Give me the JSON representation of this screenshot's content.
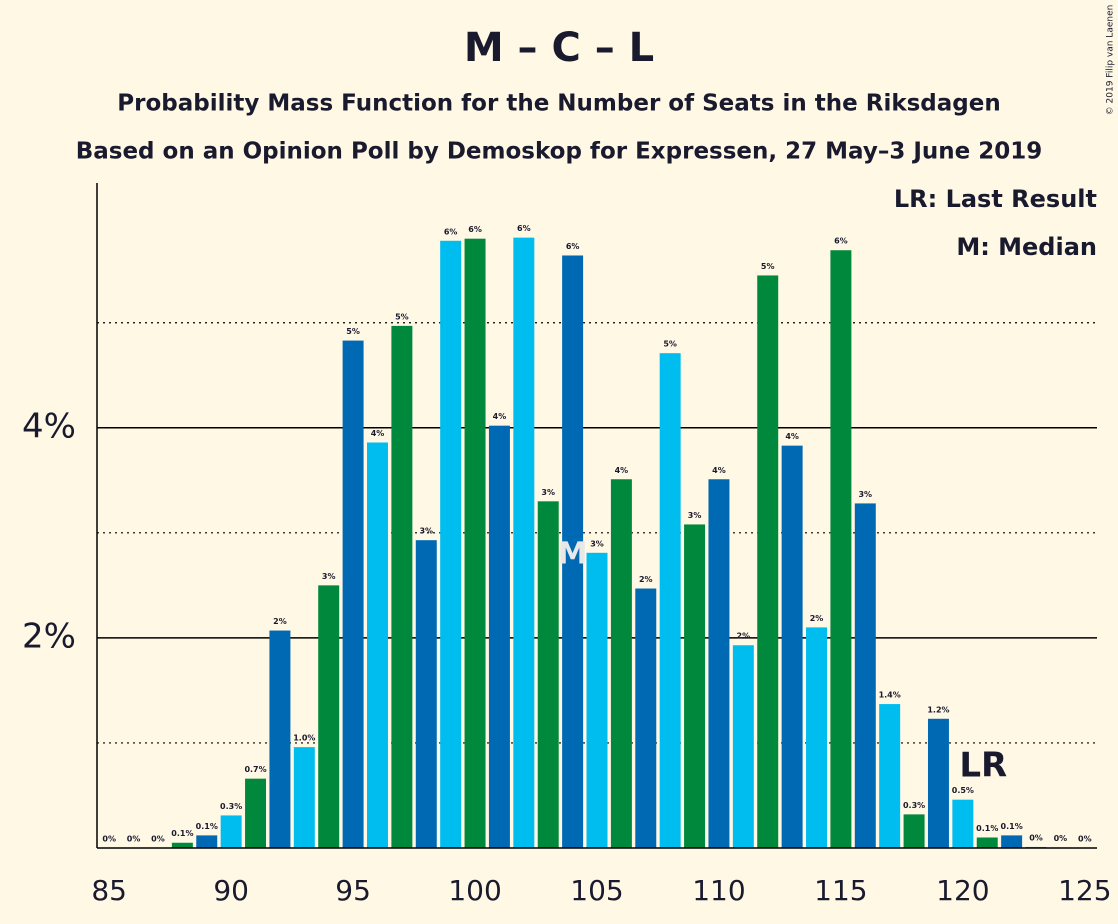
{
  "chart_data": {
    "type": "bar",
    "title": "M – C – L",
    "subtitle": "Probability Mass Function for the Number of Seats in the Riksdagen",
    "subtitle2": "Based on an Opinion Poll by Demoskop for Expressen, 27 May–3 June 2019",
    "copyright": "© 2019 Filip van Laenen",
    "legend": [
      "LR: Last Result",
      "M: Median"
    ],
    "x": [
      85,
      86,
      87,
      88,
      89,
      90,
      91,
      92,
      93,
      94,
      95,
      96,
      97,
      98,
      99,
      100,
      101,
      102,
      103,
      104,
      105,
      106,
      107,
      108,
      109,
      110,
      111,
      112,
      113,
      114,
      115,
      116,
      117,
      118,
      119,
      120,
      121,
      122,
      123,
      124,
      125
    ],
    "values": [
      0,
      0,
      0,
      0.05,
      0.12,
      0.31,
      0.66,
      2.07,
      0.96,
      2.5,
      4.83,
      3.86,
      4.97,
      2.93,
      5.78,
      5.8,
      4.02,
      5.81,
      3.3,
      5.64,
      2.81,
      3.51,
      2.47,
      4.71,
      3.08,
      3.51,
      1.93,
      5.45,
      3.83,
      2.1,
      5.69,
      3.28,
      1.37,
      0.32,
      1.23,
      0.46,
      0.1,
      0.12,
      0.01,
      0.005,
      0
    ],
    "value_labels": [
      "0%",
      "0%",
      "0%",
      "0.1%",
      "0.1%",
      "0.3%",
      "0.7%",
      "2%",
      "1.0%",
      "3%",
      "5%",
      "4%",
      "5%",
      "3%",
      "6%",
      "6%",
      "4%",
      "6%",
      "3%",
      "6%",
      "3%",
      "4%",
      "2%",
      "5%",
      "3%",
      "4%",
      "2%",
      "5%",
      "4%",
      "2%",
      "6%",
      "3%",
      "1.4%",
      "0.3%",
      "1.2%",
      "0.5%",
      "0.1%",
      "0.1%",
      "0%",
      "0%",
      "0%"
    ],
    "bar_colors": [
      "#00883c",
      "#0069b3",
      "#00bdf0"
    ],
    "xlim": [
      84.5,
      125.5
    ],
    "xticks": [
      85,
      90,
      95,
      100,
      105,
      110,
      115,
      120,
      125
    ],
    "ylim": [
      0,
      6.33
    ],
    "yticks": [
      {
        "value": 2,
        "label": "2%"
      },
      {
        "value": 4,
        "label": "4%"
      }
    ],
    "minor_yticks": [
      1,
      3,
      5
    ],
    "median": {
      "x": 104,
      "label": "M"
    },
    "last_result": {
      "x": 121,
      "label": "LR"
    }
  }
}
